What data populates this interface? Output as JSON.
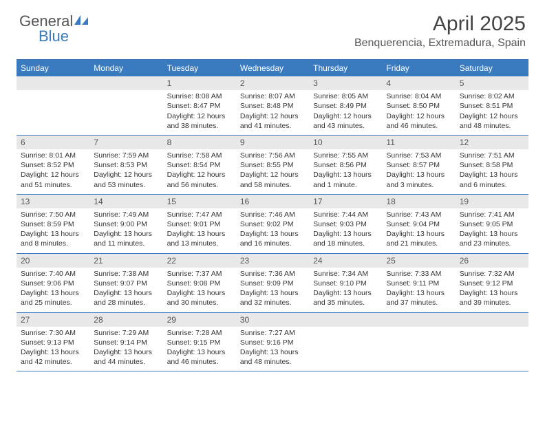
{
  "logo": {
    "part1": "General",
    "part2": "Blue"
  },
  "title": "April 2025",
  "location": "Benquerencia, Extremadura, Spain",
  "colors": {
    "accent": "#3a7bbf",
    "header_bg": "#3a7bbf",
    "daynum_bg": "#e8e8e8",
    "text": "#333333",
    "muted": "#555555",
    "white": "#ffffff"
  },
  "daysOfWeek": [
    "Sunday",
    "Monday",
    "Tuesday",
    "Wednesday",
    "Thursday",
    "Friday",
    "Saturday"
  ],
  "weeks": [
    [
      {
        "n": "",
        "sr": "",
        "ss": "",
        "dl": ""
      },
      {
        "n": "",
        "sr": "",
        "ss": "",
        "dl": ""
      },
      {
        "n": "1",
        "sr": "Sunrise: 8:08 AM",
        "ss": "Sunset: 8:47 PM",
        "dl": "Daylight: 12 hours and 38 minutes."
      },
      {
        "n": "2",
        "sr": "Sunrise: 8:07 AM",
        "ss": "Sunset: 8:48 PM",
        "dl": "Daylight: 12 hours and 41 minutes."
      },
      {
        "n": "3",
        "sr": "Sunrise: 8:05 AM",
        "ss": "Sunset: 8:49 PM",
        "dl": "Daylight: 12 hours and 43 minutes."
      },
      {
        "n": "4",
        "sr": "Sunrise: 8:04 AM",
        "ss": "Sunset: 8:50 PM",
        "dl": "Daylight: 12 hours and 46 minutes."
      },
      {
        "n": "5",
        "sr": "Sunrise: 8:02 AM",
        "ss": "Sunset: 8:51 PM",
        "dl": "Daylight: 12 hours and 48 minutes."
      }
    ],
    [
      {
        "n": "6",
        "sr": "Sunrise: 8:01 AM",
        "ss": "Sunset: 8:52 PM",
        "dl": "Daylight: 12 hours and 51 minutes."
      },
      {
        "n": "7",
        "sr": "Sunrise: 7:59 AM",
        "ss": "Sunset: 8:53 PM",
        "dl": "Daylight: 12 hours and 53 minutes."
      },
      {
        "n": "8",
        "sr": "Sunrise: 7:58 AM",
        "ss": "Sunset: 8:54 PM",
        "dl": "Daylight: 12 hours and 56 minutes."
      },
      {
        "n": "9",
        "sr": "Sunrise: 7:56 AM",
        "ss": "Sunset: 8:55 PM",
        "dl": "Daylight: 12 hours and 58 minutes."
      },
      {
        "n": "10",
        "sr": "Sunrise: 7:55 AM",
        "ss": "Sunset: 8:56 PM",
        "dl": "Daylight: 13 hours and 1 minute."
      },
      {
        "n": "11",
        "sr": "Sunrise: 7:53 AM",
        "ss": "Sunset: 8:57 PM",
        "dl": "Daylight: 13 hours and 3 minutes."
      },
      {
        "n": "12",
        "sr": "Sunrise: 7:51 AM",
        "ss": "Sunset: 8:58 PM",
        "dl": "Daylight: 13 hours and 6 minutes."
      }
    ],
    [
      {
        "n": "13",
        "sr": "Sunrise: 7:50 AM",
        "ss": "Sunset: 8:59 PM",
        "dl": "Daylight: 13 hours and 8 minutes."
      },
      {
        "n": "14",
        "sr": "Sunrise: 7:49 AM",
        "ss": "Sunset: 9:00 PM",
        "dl": "Daylight: 13 hours and 11 minutes."
      },
      {
        "n": "15",
        "sr": "Sunrise: 7:47 AM",
        "ss": "Sunset: 9:01 PM",
        "dl": "Daylight: 13 hours and 13 minutes."
      },
      {
        "n": "16",
        "sr": "Sunrise: 7:46 AM",
        "ss": "Sunset: 9:02 PM",
        "dl": "Daylight: 13 hours and 16 minutes."
      },
      {
        "n": "17",
        "sr": "Sunrise: 7:44 AM",
        "ss": "Sunset: 9:03 PM",
        "dl": "Daylight: 13 hours and 18 minutes."
      },
      {
        "n": "18",
        "sr": "Sunrise: 7:43 AM",
        "ss": "Sunset: 9:04 PM",
        "dl": "Daylight: 13 hours and 21 minutes."
      },
      {
        "n": "19",
        "sr": "Sunrise: 7:41 AM",
        "ss": "Sunset: 9:05 PM",
        "dl": "Daylight: 13 hours and 23 minutes."
      }
    ],
    [
      {
        "n": "20",
        "sr": "Sunrise: 7:40 AM",
        "ss": "Sunset: 9:06 PM",
        "dl": "Daylight: 13 hours and 25 minutes."
      },
      {
        "n": "21",
        "sr": "Sunrise: 7:38 AM",
        "ss": "Sunset: 9:07 PM",
        "dl": "Daylight: 13 hours and 28 minutes."
      },
      {
        "n": "22",
        "sr": "Sunrise: 7:37 AM",
        "ss": "Sunset: 9:08 PM",
        "dl": "Daylight: 13 hours and 30 minutes."
      },
      {
        "n": "23",
        "sr": "Sunrise: 7:36 AM",
        "ss": "Sunset: 9:09 PM",
        "dl": "Daylight: 13 hours and 32 minutes."
      },
      {
        "n": "24",
        "sr": "Sunrise: 7:34 AM",
        "ss": "Sunset: 9:10 PM",
        "dl": "Daylight: 13 hours and 35 minutes."
      },
      {
        "n": "25",
        "sr": "Sunrise: 7:33 AM",
        "ss": "Sunset: 9:11 PM",
        "dl": "Daylight: 13 hours and 37 minutes."
      },
      {
        "n": "26",
        "sr": "Sunrise: 7:32 AM",
        "ss": "Sunset: 9:12 PM",
        "dl": "Daylight: 13 hours and 39 minutes."
      }
    ],
    [
      {
        "n": "27",
        "sr": "Sunrise: 7:30 AM",
        "ss": "Sunset: 9:13 PM",
        "dl": "Daylight: 13 hours and 42 minutes."
      },
      {
        "n": "28",
        "sr": "Sunrise: 7:29 AM",
        "ss": "Sunset: 9:14 PM",
        "dl": "Daylight: 13 hours and 44 minutes."
      },
      {
        "n": "29",
        "sr": "Sunrise: 7:28 AM",
        "ss": "Sunset: 9:15 PM",
        "dl": "Daylight: 13 hours and 46 minutes."
      },
      {
        "n": "30",
        "sr": "Sunrise: 7:27 AM",
        "ss": "Sunset: 9:16 PM",
        "dl": "Daylight: 13 hours and 48 minutes."
      },
      {
        "n": "",
        "sr": "",
        "ss": "",
        "dl": ""
      },
      {
        "n": "",
        "sr": "",
        "ss": "",
        "dl": ""
      },
      {
        "n": "",
        "sr": "",
        "ss": "",
        "dl": ""
      }
    ]
  ]
}
